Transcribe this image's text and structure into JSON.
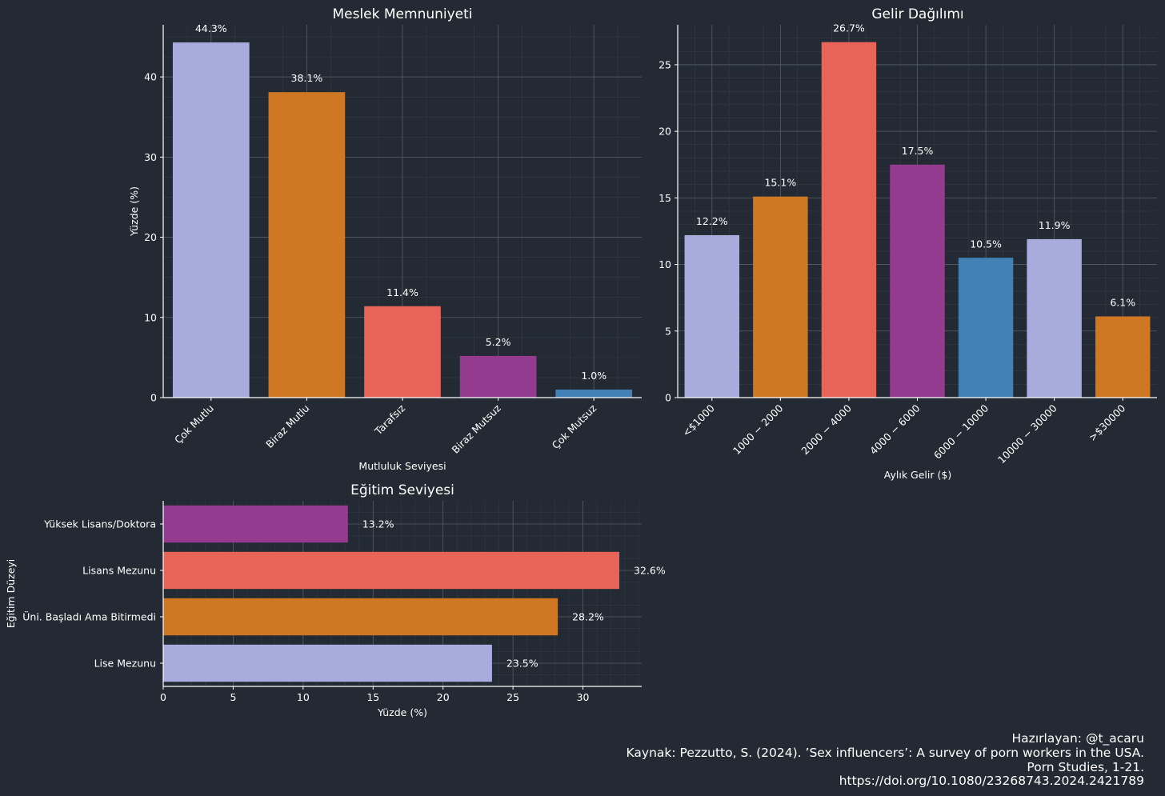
{
  "chart_data": [
    {
      "type": "bar",
      "title": "Meslek Memnuniyeti",
      "xlabel": "Mutluluk Seviyesi",
      "ylabel": "Yüzde (%)",
      "categories": [
        "Çok Mutlu",
        "Biraz Mutlu",
        "Tarafsız",
        "Biraz Mutsuz",
        "Çok Mutsuz"
      ],
      "values": [
        44.3,
        38.1,
        11.4,
        5.2,
        1.0
      ],
      "value_labels": [
        "44.3%",
        "38.1%",
        "11.4%",
        "5.2%",
        "1.0%"
      ],
      "colors": [
        "#a8acdc",
        "#d07724",
        "#e86358",
        "#943a8f",
        "#4281b6"
      ],
      "ylim": [
        0,
        46.5
      ],
      "yticks": [
        0,
        10,
        20,
        30,
        40
      ],
      "grid": true,
      "legend": "none"
    },
    {
      "type": "bar",
      "title": "Gelir Dağılımı",
      "xlabel": "Aylık Gelir ($)",
      "ylabel": "",
      "categories": [
        "<$1000",
        "1000 − 2000",
        "2000 − 4000",
        "4000 − 6000",
        "6000 − 10000",
        "10000 − 30000",
        ">$30000"
      ],
      "values": [
        12.2,
        15.1,
        26.7,
        17.5,
        10.5,
        11.9,
        6.1
      ],
      "value_labels": [
        "12.2%",
        "15.1%",
        "26.7%",
        "17.5%",
        "10.5%",
        "11.9%",
        "6.1%"
      ],
      "colors": [
        "#a8acdc",
        "#d07724",
        "#e86358",
        "#943a8f",
        "#4281b6",
        "#a8acdc",
        "#d07724"
      ],
      "ylim": [
        0,
        28
      ],
      "yticks": [
        0,
        5,
        10,
        15,
        20,
        25
      ],
      "grid": true,
      "legend": "none"
    },
    {
      "type": "barh",
      "title": "Eğitim Seviyesi",
      "xlabel": "Yüzde (%)",
      "ylabel": "Eğitim Düzeyi",
      "categories": [
        "Yüksek Lisans/Doktora",
        "Lisans Mezunu",
        "Üni. Başladı Ama Bitirmedi",
        "Lise Mezunu"
      ],
      "values": [
        13.2,
        32.6,
        28.2,
        23.5
      ],
      "value_labels": [
        "13.2%",
        "32.6%",
        "28.2%",
        "23.5%"
      ],
      "colors": [
        "#943a8f",
        "#e86358",
        "#d07724",
        "#a8acdc"
      ],
      "xlim": [
        0,
        34.2
      ],
      "xticks": [
        0,
        5,
        10,
        15,
        20,
        25,
        30
      ],
      "grid": true,
      "legend": "none"
    }
  ],
  "credits": {
    "line1": "Hazırlayan: @t_acaru",
    "line2": "Kaynak: Pezzutto, S. (2024). ’Sex influencers’: A survey of porn workers in the USA.",
    "line3": "Porn Studies, 1-21.",
    "line4": "https://doi.org/10.1080/23268743.2024.2421789"
  },
  "colors": {
    "background": "#232a33",
    "axis": "#ffffff",
    "grid": "#5a626c",
    "text": "#ffffff"
  }
}
